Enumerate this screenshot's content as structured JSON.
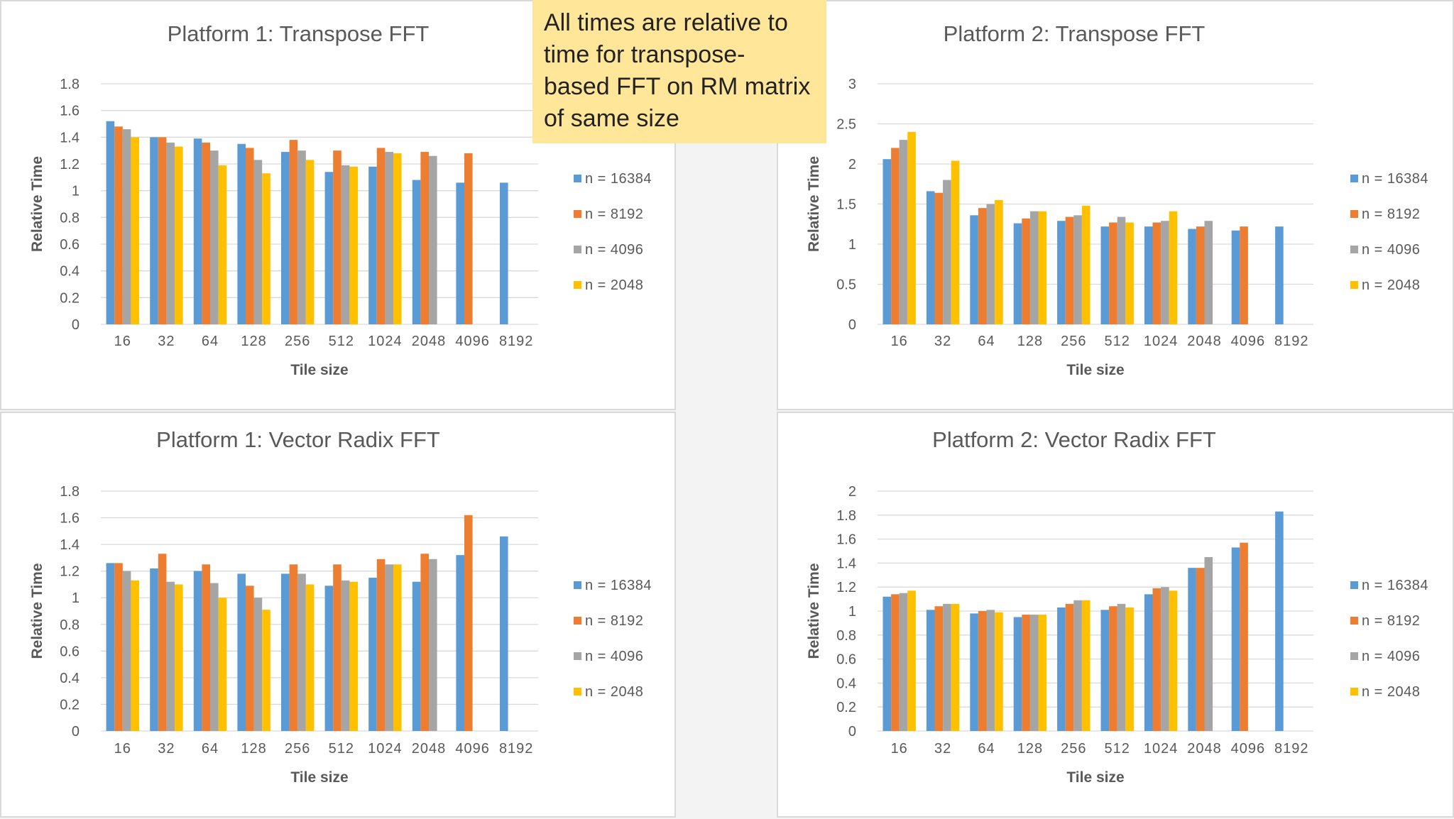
{
  "note": {
    "lines": [
      "All times are relative to",
      "time for transpose-",
      "based FFT on RM matrix",
      "of same size"
    ]
  },
  "colors": {
    "n_16384": "#5b9bd5",
    "n_8192": "#ed7d31",
    "n_4096": "#a5a5a5",
    "n_2048": "#ffc000",
    "gridline": "#d9d9d9"
  },
  "chart_data": [
    {
      "type": "bar",
      "title": "Platform 1: Transpose  FFT",
      "xlabel": "Tile size",
      "ylabel": "Relative Time",
      "ylim": [
        0,
        1.8
      ],
      "yticks": [
        "0",
        "0.2",
        "0.4",
        "0.6",
        "0.8",
        "1",
        "1.2",
        "1.4",
        "1.6",
        "1.8"
      ],
      "grid": true,
      "legend": "right",
      "categories": [
        "16",
        "32",
        "64",
        "128",
        "256",
        "512",
        "1024",
        "2048",
        "4096",
        "8192"
      ],
      "series": [
        {
          "name": "n = 16384",
          "values": [
            1.52,
            1.4,
            1.39,
            1.35,
            1.29,
            1.14,
            1.18,
            1.08,
            1.06,
            1.06
          ]
        },
        {
          "name": "n = 8192",
          "values": [
            1.48,
            1.4,
            1.36,
            1.32,
            1.38,
            1.3,
            1.32,
            1.29,
            1.28,
            null
          ]
        },
        {
          "name": "n = 4096",
          "values": [
            1.46,
            1.36,
            1.3,
            1.23,
            1.3,
            1.19,
            1.29,
            1.26,
            null,
            null
          ]
        },
        {
          "name": "n = 2048",
          "values": [
            1.4,
            1.33,
            1.19,
            1.13,
            1.23,
            1.18,
            1.28,
            null,
            null,
            null
          ]
        }
      ]
    },
    {
      "type": "bar",
      "title": "Platform 2: Transpose  FFT",
      "xlabel": "Tile size",
      "ylabel": "Relative Time",
      "ylim": [
        0,
        3
      ],
      "yticks": [
        "0",
        "0.5",
        "1",
        "1.5",
        "2",
        "2.5",
        "3"
      ],
      "grid": true,
      "legend": "right",
      "categories": [
        "16",
        "32",
        "64",
        "128",
        "256",
        "512",
        "1024",
        "2048",
        "4096",
        "8192"
      ],
      "series": [
        {
          "name": "n = 16384",
          "values": [
            2.06,
            1.66,
            1.36,
            1.26,
            1.29,
            1.22,
            1.22,
            1.19,
            1.17,
            1.22
          ]
        },
        {
          "name": "n = 8192",
          "values": [
            2.2,
            1.64,
            1.45,
            1.32,
            1.34,
            1.27,
            1.27,
            1.22,
            1.22,
            null
          ]
        },
        {
          "name": "n = 4096",
          "values": [
            2.3,
            1.8,
            1.5,
            1.41,
            1.36,
            1.34,
            1.29,
            1.29,
            null,
            null
          ]
        },
        {
          "name": "n = 2048",
          "values": [
            2.4,
            2.04,
            1.55,
            1.41,
            1.48,
            1.27,
            1.41,
            null,
            null,
            null
          ]
        }
      ]
    },
    {
      "type": "bar",
      "title": "Platform 1: Vector Radix FFT",
      "xlabel": "Tile size",
      "ylabel": "Relative Time",
      "ylim": [
        0,
        1.8
      ],
      "yticks": [
        "0",
        "0.2",
        "0.4",
        "0.6",
        "0.8",
        "1",
        "1.2",
        "1.4",
        "1.6",
        "1.8"
      ],
      "grid": true,
      "legend": "right",
      "categories": [
        "16",
        "32",
        "64",
        "128",
        "256",
        "512",
        "1024",
        "2048",
        "4096",
        "8192"
      ],
      "series": [
        {
          "name": "n = 16384",
          "values": [
            1.26,
            1.22,
            1.2,
            1.18,
            1.18,
            1.09,
            1.15,
            1.12,
            1.32,
            1.46
          ]
        },
        {
          "name": "n = 8192",
          "values": [
            1.26,
            1.33,
            1.25,
            1.09,
            1.25,
            1.25,
            1.29,
            1.33,
            1.62,
            null
          ]
        },
        {
          "name": "n = 4096",
          "values": [
            1.2,
            1.12,
            1.11,
            1.0,
            1.18,
            1.13,
            1.25,
            1.29,
            null,
            null
          ]
        },
        {
          "name": "n = 2048",
          "values": [
            1.13,
            1.1,
            1.0,
            0.91,
            1.1,
            1.12,
            1.25,
            null,
            null,
            null
          ]
        }
      ]
    },
    {
      "type": "bar",
      "title": "Platform 2: Vector Radix FFT",
      "xlabel": "Tile size",
      "ylabel": "Relative Time",
      "ylim": [
        0,
        2
      ],
      "yticks": [
        "0",
        "0.2",
        "0.4",
        "0.6",
        "0.8",
        "1",
        "1.2",
        "1.4",
        "1.6",
        "1.8",
        "2"
      ],
      "grid": true,
      "legend": "right",
      "categories": [
        "16",
        "32",
        "64",
        "128",
        "256",
        "512",
        "1024",
        "2048",
        "4096",
        "8192"
      ],
      "series": [
        {
          "name": "n = 16384",
          "values": [
            1.12,
            1.01,
            0.98,
            0.95,
            1.03,
            1.01,
            1.14,
            1.36,
            1.53,
            1.83
          ]
        },
        {
          "name": "n = 8192",
          "values": [
            1.14,
            1.04,
            1.0,
            0.97,
            1.06,
            1.04,
            1.19,
            1.36,
            1.57,
            null
          ]
        },
        {
          "name": "n = 4096",
          "values": [
            1.15,
            1.06,
            1.01,
            0.97,
            1.09,
            1.06,
            1.2,
            1.45,
            null,
            null
          ]
        },
        {
          "name": "n = 2048",
          "values": [
            1.17,
            1.06,
            0.99,
            0.97,
            1.09,
            1.03,
            1.17,
            null,
            null,
            null
          ]
        }
      ]
    }
  ]
}
